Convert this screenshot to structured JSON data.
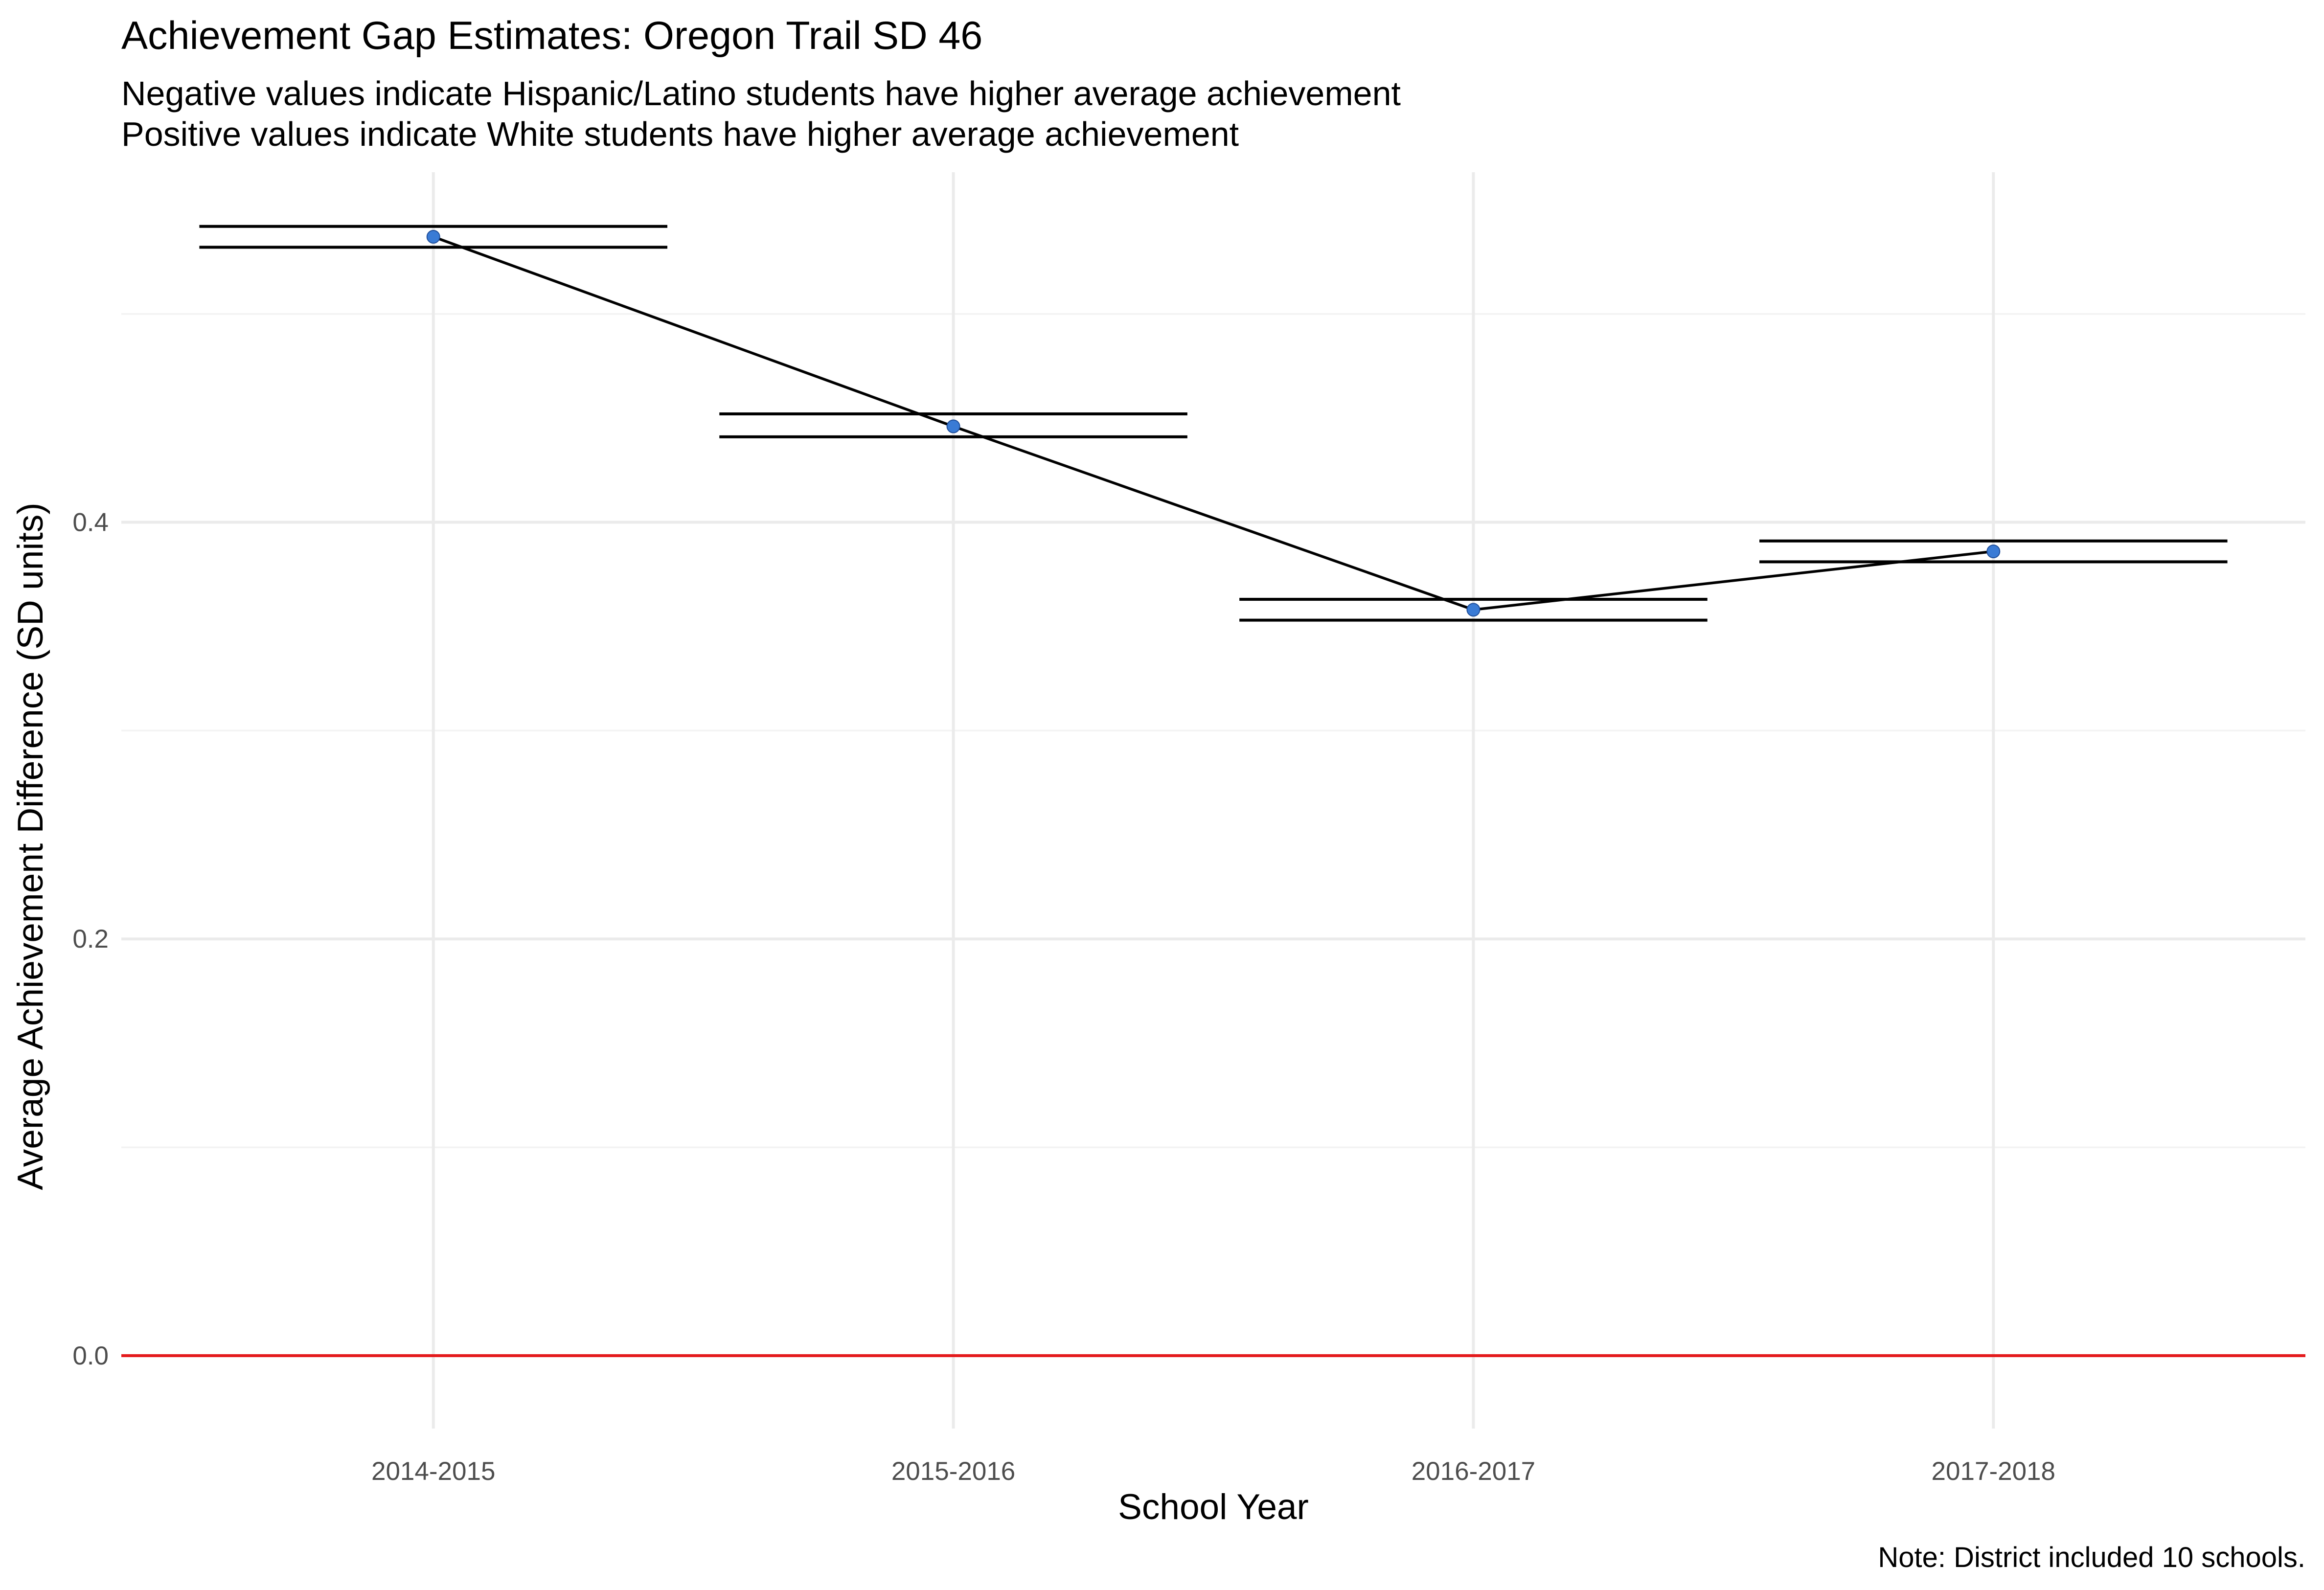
{
  "chart_data": {
    "type": "line",
    "title": "Achievement Gap Estimates: Oregon Trail SD 46",
    "subtitle_lines": [
      "Negative values indicate Hispanic/Latino students have higher average achievement",
      "Positive values indicate White students have higher average achievement"
    ],
    "xlabel": "School Year",
    "ylabel": "Average Achievement Difference (SD units)",
    "caption": "Note: District included 10 schools.",
    "categories": [
      "2014-2015",
      "2015-2016",
      "2016-2017",
      "2017-2018"
    ],
    "values": [
      0.537,
      0.446,
      0.358,
      0.386
    ],
    "ci_upper": [
      0.542,
      0.452,
      0.363,
      0.391
    ],
    "ci_lower": [
      0.532,
      0.441,
      0.353,
      0.381
    ],
    "ylim": [
      -0.035,
      0.568
    ],
    "y_ticks": [
      0.0,
      0.2,
      0.4
    ],
    "y_tick_labels": [
      "0.0",
      "0.2",
      "0.4"
    ],
    "y_minor_ticks": [
      0.1,
      0.3,
      0.5
    ],
    "reference_line": 0,
    "grid": true,
    "point_color": "#3a7bd5",
    "line_color": "#000000",
    "reference_line_color": "#e41a1c"
  }
}
